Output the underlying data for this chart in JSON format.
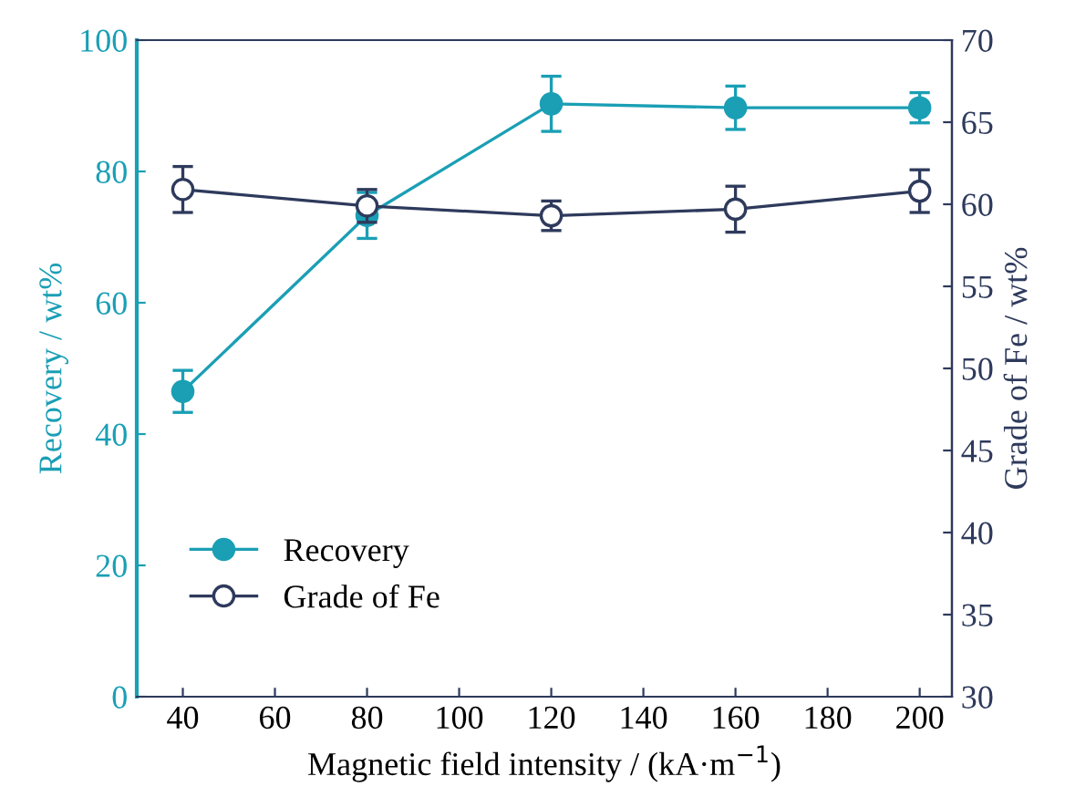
{
  "chart_data": {
    "type": "line",
    "xlabel": "Magnetic field intensity / (kA·m$^{−1}$)",
    "ylabel": "Recovery / wt%",
    "y2label": "Grade of Fe / wt%",
    "x": [
      40,
      80,
      120,
      160,
      200
    ],
    "xlim": [
      30,
      207
    ],
    "xticks": [
      40,
      60,
      80,
      100,
      120,
      140,
      160,
      180,
      200
    ],
    "ylim": [
      0,
      100
    ],
    "yticks": [
      0,
      20,
      40,
      60,
      80,
      100
    ],
    "y2lim": [
      30,
      70
    ],
    "y2ticks": [
      30,
      35,
      40,
      45,
      50,
      55,
      60,
      65,
      70
    ],
    "series": [
      {
        "name": "Recovery",
        "color": "#1a9fb5",
        "values": [
          46.5,
          73.3,
          90.3,
          89.7,
          89.7
        ],
        "errors": [
          3.2,
          3.5,
          4.2,
          3.3,
          2.3
        ],
        "marker": "circle"
      },
      {
        "name": "Grade of Fe",
        "color": "#2e3a5c",
        "axis": "y2",
        "values": [
          60.9,
          59.9,
          59.3,
          59.7,
          60.8
        ],
        "errors": [
          1.4,
          1.0,
          0.9,
          1.4,
          1.3
        ],
        "marker": "circle"
      }
    ],
    "legend": "bottom left",
    "grid": false
  }
}
